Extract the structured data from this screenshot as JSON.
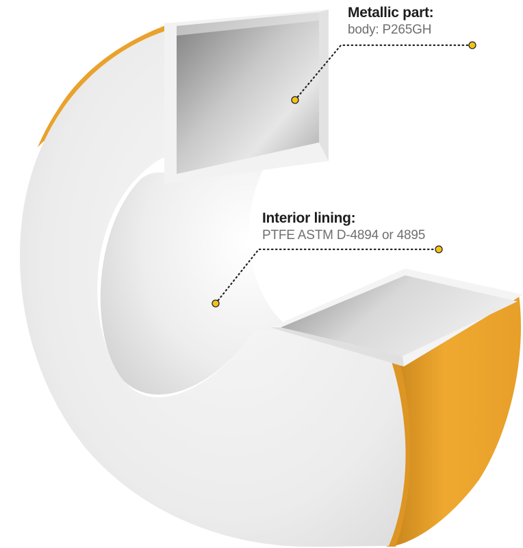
{
  "callouts": {
    "metallic": {
      "title": "Metallic part:",
      "detail": "body: P265GH"
    },
    "lining": {
      "title": "Interior lining:",
      "detail": "PTFE ASTM D-4894 or 4895"
    }
  },
  "colors": {
    "outer_shell": "#E9A22C",
    "lining_face": "#ECECEC",
    "metal": "#9D9D9D",
    "marker": "#F3C21B",
    "leader_line": "#222222"
  }
}
